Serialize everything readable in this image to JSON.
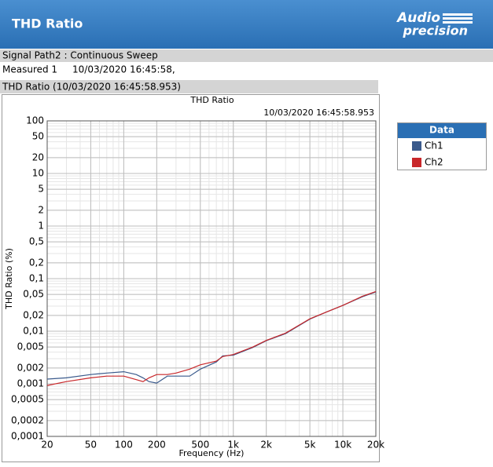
{
  "header": {
    "title": "THD Ratio",
    "logo": [
      "Audio",
      "precision"
    ]
  },
  "signal_path": "Signal Path2 : Continuous Sweep",
  "measured": {
    "label": "Measured 1",
    "time": "10/03/2020 16:45:58,"
  },
  "section_title": "THD Ratio (10/03/2020 16:45:58.953)",
  "chart_data": {
    "type": "line",
    "title": "THD Ratio",
    "timestamp": "10/03/2020 16:45:58.953",
    "x_label": "Frequency (Hz)",
    "y_label": "THD Ratio (%)",
    "legend_title": "Data",
    "x_scale": "log",
    "y_scale": "log",
    "grid": true,
    "minor_grid": true,
    "legend_position": "outside-right",
    "xlim": [
      20,
      20000
    ],
    "ylim": [
      0.0001,
      100
    ],
    "xticks": [
      20,
      50,
      100,
      200,
      500,
      {
        "value": 1000,
        "label": "1k"
      },
      {
        "value": 2000,
        "label": "2k"
      },
      {
        "value": 5000,
        "label": "5k"
      },
      {
        "value": 10000,
        "label": "10k"
      },
      {
        "value": 20000,
        "label": "20k"
      }
    ],
    "yticks": [
      100,
      50,
      20,
      10,
      5,
      2,
      1,
      {
        "value": 0.5,
        "label": "0,5"
      },
      {
        "value": 0.2,
        "label": "0,2"
      },
      {
        "value": 0.1,
        "label": "0,1"
      },
      {
        "value": 0.05,
        "label": "0,05"
      },
      {
        "value": 0.02,
        "label": "0,02"
      },
      {
        "value": 0.01,
        "label": "0,01"
      },
      {
        "value": 0.005,
        "label": "0,005"
      },
      {
        "value": 0.002,
        "label": "0,002"
      },
      {
        "value": 0.001,
        "label": "0,001"
      },
      {
        "value": 0.0005,
        "label": "0,0005"
      },
      {
        "value": 0.0002,
        "label": "0,0002"
      },
      {
        "value": 0.0001,
        "label": "0,0001"
      }
    ],
    "x": [
      20,
      30,
      50,
      70,
      100,
      130,
      150,
      170,
      200,
      250,
      300,
      400,
      500,
      700,
      800,
      1000,
      1500,
      2000,
      3000,
      5000,
      7000,
      10000,
      15000,
      20000
    ],
    "series": [
      {
        "name": "Ch1",
        "color": "#3a5a8c",
        "values": [
          0.00123,
          0.0013,
          0.0015,
          0.0016,
          0.0017,
          0.0015,
          0.0013,
          0.0011,
          0.00103,
          0.0014,
          0.0014,
          0.0014,
          0.0019,
          0.0026,
          0.0034,
          0.0035,
          0.0049,
          0.0066,
          0.009,
          0.017,
          0.023,
          0.031,
          0.045,
          0.056
        ]
      },
      {
        "name": "Ch2",
        "color": "#c8272a",
        "values": [
          0.00093,
          0.0011,
          0.0013,
          0.0014,
          0.0014,
          0.0012,
          0.0011,
          0.0013,
          0.0015,
          0.0015,
          0.0016,
          0.0019,
          0.0023,
          0.0027,
          0.0033,
          0.0036,
          0.005,
          0.0067,
          0.0092,
          0.0172,
          0.023,
          0.031,
          0.046,
          0.057
        ]
      }
    ]
  }
}
